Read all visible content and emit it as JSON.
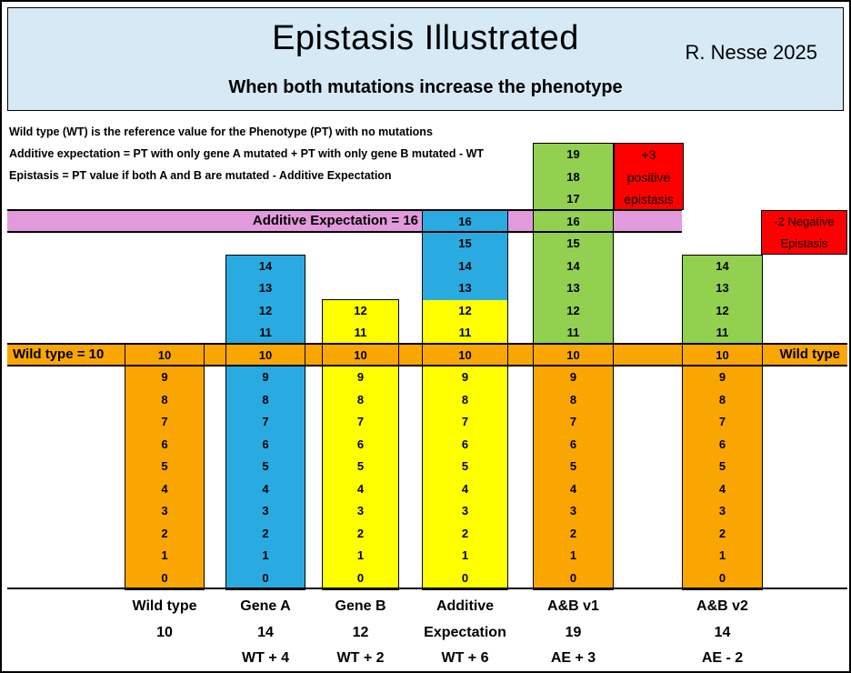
{
  "header": {
    "title": "Epistasis Illustrated",
    "subtitle": "When both mutations increase the phenotype",
    "attribution": "R. Nesse 2025",
    "bg_color": "#D6EAF6"
  },
  "definitions": [
    "Wild type (WT) is the reference value for the Phenotype (PT) with no mutations",
    "Additive expectation = PT with only gene A mutated + PT with only gene B mutated - WT",
    "Epistasis = PT value if both A and B are mutated - Additive Expectation"
  ],
  "bands": {
    "additive": {
      "label": "Additive Expectation = 16",
      "value": 16,
      "color": "#E29ADD"
    },
    "wildtype": {
      "label_left": "Wild type = 10",
      "label_right": "Wild type",
      "value": 10,
      "color": "#F9A602"
    }
  },
  "annotations": {
    "positive": {
      "lines": [
        "+3",
        "positive",
        "epistasis"
      ],
      "bg": "#FF0000",
      "top_value": 19,
      "bottom_value": 17
    },
    "negative": {
      "lines": [
        "-2 Negative",
        "Epistasis"
      ],
      "bg": "#FF0000",
      "top_value": 16,
      "bottom_value": 15
    }
  },
  "chart_data": {
    "type": "bar",
    "title": "Epistasis Illustrated",
    "subtitle": "When both mutations increase the phenotype",
    "categories": [
      "Wild type",
      "Gene A",
      "Gene B",
      "Additive Expectation",
      "A&B v1",
      "A&B v2"
    ],
    "values": [
      10,
      14,
      12,
      16,
      19,
      14
    ],
    "ylim": [
      0,
      19
    ],
    "unit_cells": true,
    "legend": "none",
    "reference_lines": [
      {
        "label": "Additive Expectation = 16",
        "y": 16
      },
      {
        "label": "Wild type = 10",
        "y": 10
      }
    ],
    "colors": {
      "wild_type": "#F9A602",
      "gene_a": "#29ABE2",
      "gene_b": "#FFFF00",
      "both_genes": "#92D050",
      "epistasis_callout": "#FF0000",
      "additive_band": "#E29ADD"
    },
    "columns": [
      {
        "name": "Wild type",
        "total": 10,
        "footer": [
          "Wild type",
          "10",
          ""
        ],
        "segments": [
          {
            "from": 0,
            "to": 10,
            "color": "#F9A602"
          }
        ]
      },
      {
        "name": "Gene A",
        "total": 14,
        "footer": [
          "Gene A",
          "14",
          "WT + 4"
        ],
        "segments": [
          {
            "from": 0,
            "to": 14,
            "color": "#29ABE2"
          }
        ]
      },
      {
        "name": "Gene B",
        "total": 12,
        "footer": [
          "Gene B",
          "12",
          "WT + 2"
        ],
        "segments": [
          {
            "from": 0,
            "to": 12,
            "color": "#FFFF00"
          }
        ]
      },
      {
        "name": "Additive Expectation",
        "total": 16,
        "footer": [
          "Additive",
          "Expectation",
          "WT + 6"
        ],
        "segments": [
          {
            "from": 0,
            "to": 12,
            "color": "#FFFF00"
          },
          {
            "from": 13,
            "to": 16,
            "color": "#29ABE2"
          }
        ]
      },
      {
        "name": "A&B v1",
        "total": 19,
        "footer": [
          "A&B v1",
          "19",
          "AE + 3"
        ],
        "segments": [
          {
            "from": 0,
            "to": 10,
            "color": "#F9A602"
          },
          {
            "from": 11,
            "to": 19,
            "color": "#92D050"
          }
        ]
      },
      {
        "name": "A&B v2",
        "total": 14,
        "footer": [
          "A&B v2",
          "14",
          "AE - 2"
        ],
        "segments": [
          {
            "from": 0,
            "to": 10,
            "color": "#F9A602"
          },
          {
            "from": 11,
            "to": 14,
            "color": "#92D050"
          }
        ]
      }
    ]
  }
}
